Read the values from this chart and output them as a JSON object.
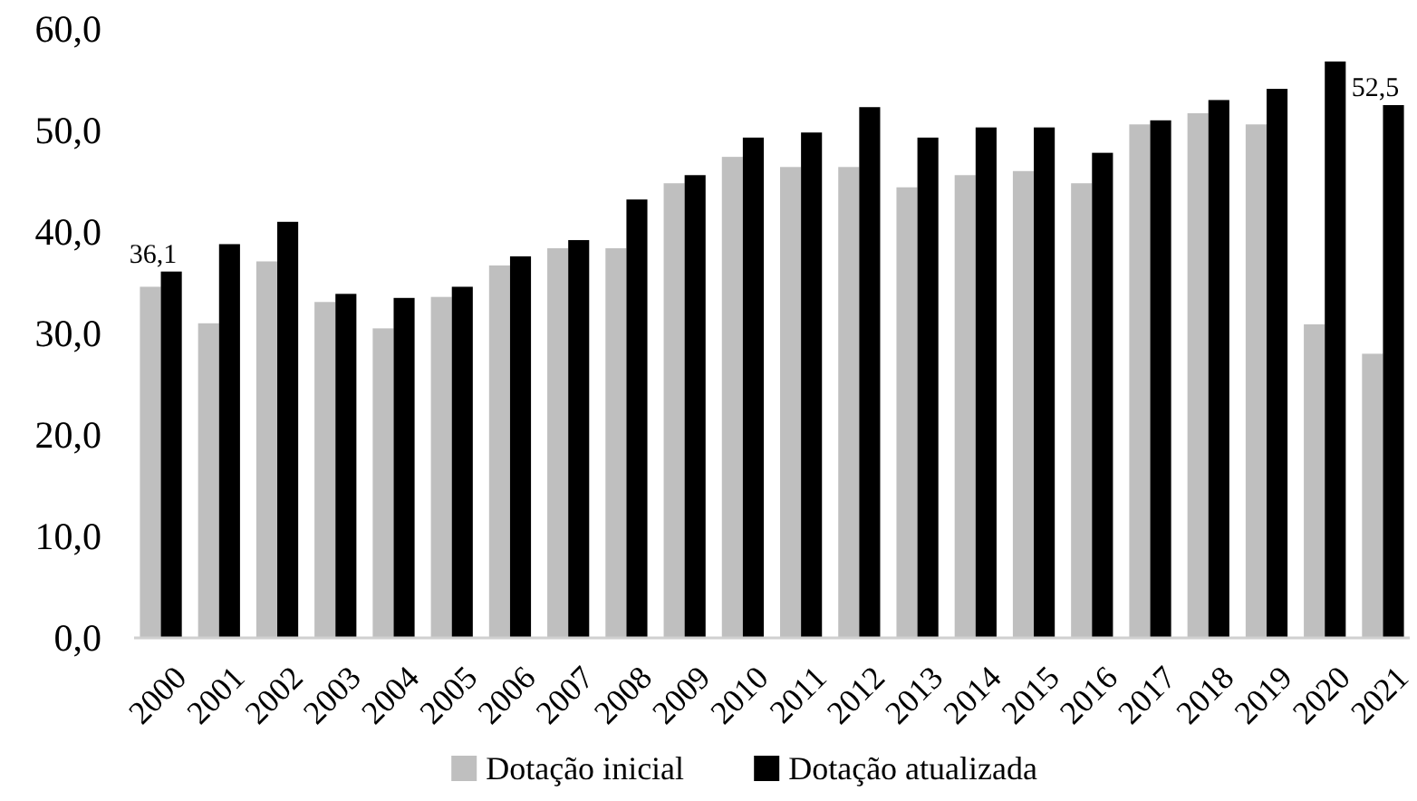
{
  "chart_data": {
    "type": "bar",
    "categories": [
      "2000",
      "2001",
      "2002",
      "2003",
      "2004",
      "2005",
      "2006",
      "2007",
      "2008",
      "2009",
      "2010",
      "2011",
      "2012",
      "2013",
      "2014",
      "2015",
      "2016",
      "2017",
      "2018",
      "2019",
      "2020",
      "2021"
    ],
    "series": [
      {
        "name": "Dotação inicial",
        "color": "#bfbfbf",
        "values": [
          34.6,
          31.0,
          37.1,
          33.1,
          30.5,
          33.6,
          36.7,
          38.4,
          38.4,
          44.8,
          47.4,
          46.4,
          46.4,
          44.4,
          45.6,
          46.0,
          44.8,
          50.6,
          51.7,
          50.6,
          30.9,
          28.0
        ]
      },
      {
        "name": "Dotação atualizada",
        "color": "#000000",
        "values": [
          36.1,
          38.8,
          41.0,
          33.9,
          33.5,
          34.6,
          37.6,
          39.2,
          43.2,
          45.6,
          49.3,
          49.8,
          52.3,
          49.3,
          50.3,
          50.3,
          47.8,
          51.0,
          53.0,
          54.1,
          56.8,
          52.5
        ],
        "value_labels": [
          "36,1",
          null,
          null,
          null,
          null,
          null,
          null,
          null,
          null,
          null,
          null,
          null,
          null,
          null,
          null,
          null,
          null,
          null,
          null,
          null,
          null,
          "52,5"
        ]
      }
    ],
    "ylim": [
      0,
      60
    ],
    "yticks": [
      {
        "value": 0,
        "label": "0,0"
      },
      {
        "value": 10,
        "label": "10,0"
      },
      {
        "value": 20,
        "label": "20,0"
      },
      {
        "value": 30,
        "label": "30,0"
      },
      {
        "value": 40,
        "label": "40,0"
      },
      {
        "value": 50,
        "label": "50,0"
      },
      {
        "value": 60,
        "label": "60,0"
      }
    ],
    "legend": "bottom"
  }
}
